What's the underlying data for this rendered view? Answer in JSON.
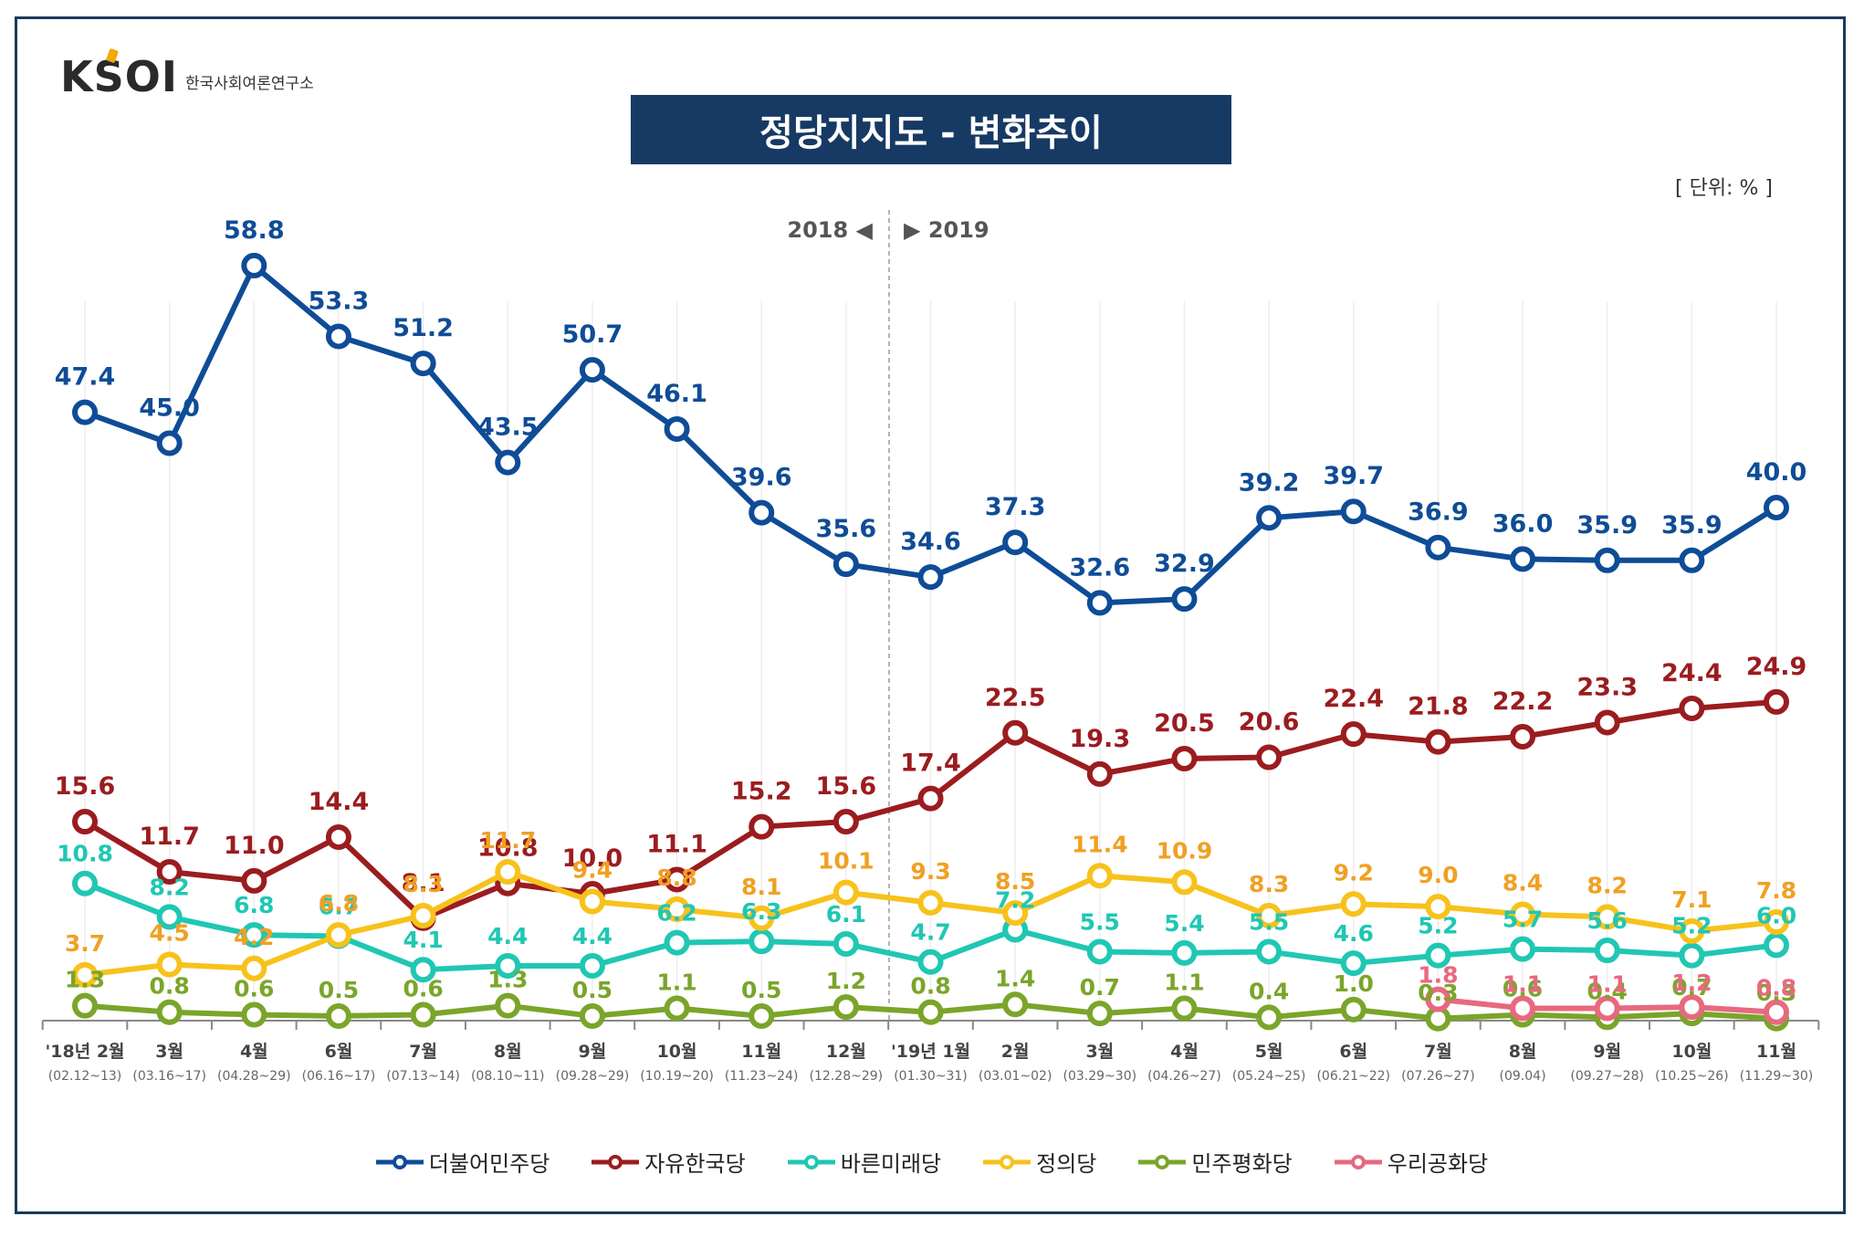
{
  "logo": {
    "name": "KSOI",
    "subtitle": "한국사회여론연구소"
  },
  "header": {
    "title": "정당지지도 - 변화추이",
    "unit": "[ 단위: % ]"
  },
  "divider": {
    "left_label": "2018 ◀",
    "right_label": "▶ 2019"
  },
  "chart_data": {
    "type": "line",
    "title": "정당지지도 - 변화추이",
    "x": [
      {
        "label": "'18년  2월",
        "date": "(02.12~13)"
      },
      {
        "label": "3월",
        "date": "(03.16~17)"
      },
      {
        "label": "4월",
        "date": "(04.28~29)"
      },
      {
        "label": "6월",
        "date": "(06.16~17)"
      },
      {
        "label": "7월",
        "date": "(07.13~14)"
      },
      {
        "label": "8월",
        "date": "(08.10~11)"
      },
      {
        "label": "9월",
        "date": "(09.28~29)"
      },
      {
        "label": "10월",
        "date": "(10.19~20)"
      },
      {
        "label": "11월",
        "date": "(11.23~24)"
      },
      {
        "label": "12월",
        "date": "(12.28~29)"
      },
      {
        "label": "'19년  1월",
        "date": "(01.30~31)"
      },
      {
        "label": "2월",
        "date": "(03.01~02)"
      },
      {
        "label": "3월",
        "date": "(03.29~30)"
      },
      {
        "label": "4월",
        "date": "(04.26~27)"
      },
      {
        "label": "5월",
        "date": "(05.24~25)"
      },
      {
        "label": "6월",
        "date": "(06.21~22)"
      },
      {
        "label": "7월",
        "date": "(07.26~27)"
      },
      {
        "label": "8월",
        "date": "(09.04)"
      },
      {
        "label": "9월",
        "date": "(09.27~28)"
      },
      {
        "label": "10월",
        "date": "(10.25~26)"
      },
      {
        "label": "11월",
        "date": "(11.29~30)"
      }
    ],
    "series": [
      {
        "name": "더불어민주당",
        "color": "#0f4c97",
        "values": [
          47.4,
          45.0,
          58.8,
          53.3,
          51.2,
          43.5,
          50.7,
          46.1,
          39.6,
          35.6,
          34.6,
          37.3,
          32.6,
          32.9,
          39.2,
          39.7,
          36.9,
          36.0,
          35.9,
          35.9,
          40.0
        ]
      },
      {
        "name": "자유한국당",
        "color": "#9b1c1f",
        "values": [
          15.6,
          11.7,
          11.0,
          14.4,
          8.1,
          10.8,
          10.0,
          11.1,
          15.2,
          15.6,
          17.4,
          22.5,
          19.3,
          20.5,
          20.6,
          22.4,
          21.8,
          22.2,
          23.3,
          24.4,
          24.9
        ]
      },
      {
        "name": "바른미래당",
        "color": "#20c7b3",
        "values": [
          10.8,
          8.2,
          6.8,
          6.7,
          4.1,
          4.4,
          4.4,
          6.2,
          6.3,
          6.1,
          4.7,
          7.2,
          5.5,
          5.4,
          5.5,
          4.6,
          5.2,
          5.7,
          5.6,
          5.2,
          6.0
        ]
      },
      {
        "name": "정의당",
        "color": "#f7c21c",
        "values": [
          3.7,
          4.5,
          4.2,
          6.8,
          8.3,
          11.7,
          9.4,
          8.8,
          8.1,
          10.1,
          9.3,
          8.5,
          11.4,
          10.9,
          8.3,
          9.2,
          9.0,
          8.4,
          8.2,
          7.1,
          7.8
        ]
      },
      {
        "name": "민주평화당",
        "color": "#7aa52a",
        "values": [
          1.3,
          0.8,
          0.6,
          0.5,
          0.6,
          1.3,
          0.5,
          1.1,
          0.5,
          1.2,
          0.8,
          1.4,
          0.7,
          1.1,
          0.4,
          1.0,
          0.3,
          0.6,
          0.4,
          0.7,
          0.3
        ]
      },
      {
        "name": "우리공화당",
        "color": "#e8697f",
        "values": [
          null,
          null,
          null,
          null,
          null,
          null,
          null,
          null,
          null,
          null,
          null,
          null,
          null,
          null,
          null,
          null,
          1.8,
          1.1,
          1.1,
          1.2,
          0.8
        ]
      }
    ],
    "label_colors": {
      "더불어민주당": "#0f4c97",
      "자유한국당": "#9b1c1f",
      "바른미래당": "#20c7b3",
      "정의당": "#f0a023",
      "민주평화당": "#7aa52a",
      "우리공화당": "#e8697f"
    },
    "ylim": [
      0,
      60
    ],
    "legend_position": "bottom"
  }
}
